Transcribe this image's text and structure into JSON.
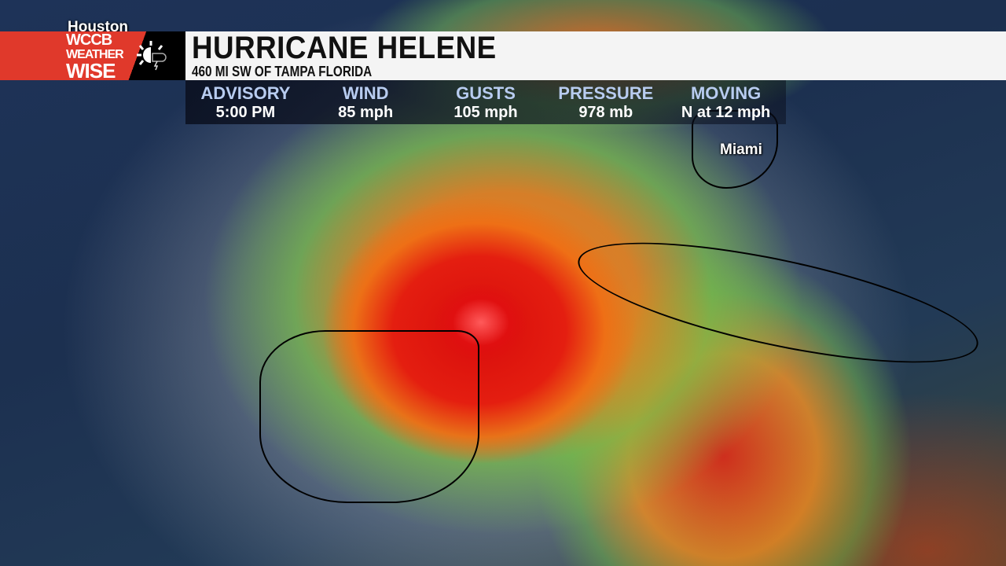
{
  "map": {
    "cities": [
      "Houston",
      "Miami"
    ]
  },
  "logo": {
    "line1": "WCCB",
    "line2": "WEATHER",
    "line3": "WISE",
    "icon": "sun-storm-icon",
    "brand_color": "#e0392b"
  },
  "banner": {
    "title": "HURRICANE HELENE",
    "subtitle": "460 MI SW OF TAMPA FLORIDA"
  },
  "stats": [
    {
      "label": "ADVISORY",
      "value": "5:00 PM"
    },
    {
      "label": "WIND",
      "value": "85 mph"
    },
    {
      "label": "GUSTS",
      "value": "105 mph"
    },
    {
      "label": "PRESSURE",
      "value": "978 mb"
    },
    {
      "label": "MOVING",
      "value": "N at 12 mph"
    }
  ]
}
